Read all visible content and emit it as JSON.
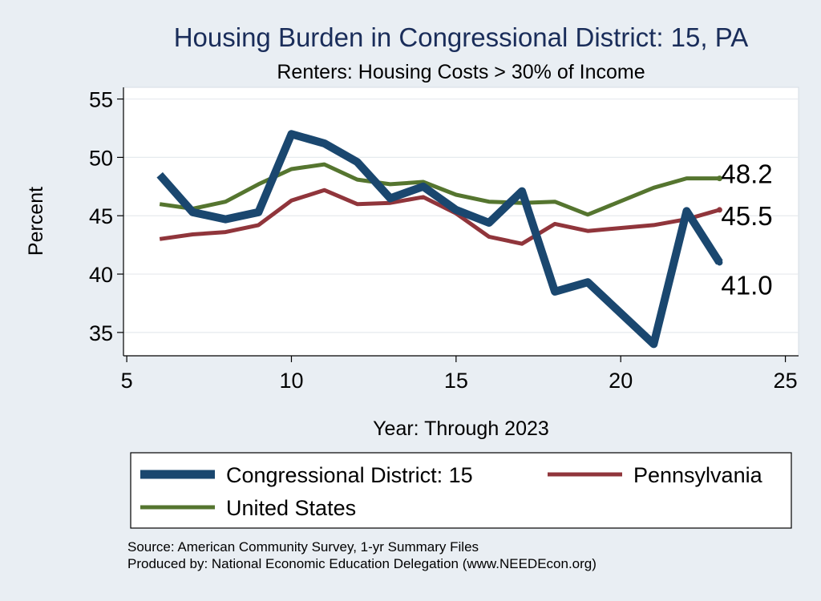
{
  "chart_data": {
    "type": "line",
    "title": "Housing Burden in Congressional District:  15, PA",
    "subtitle": "Renters: Housing Costs > 30% of Income",
    "xlabel": "Year: Through 2023",
    "ylabel": "Percent",
    "xlim": [
      4.9,
      25.4
    ],
    "ylim": [
      33,
      56
    ],
    "xticks": [
      5,
      10,
      15,
      20,
      25
    ],
    "yticks": [
      35,
      40,
      45,
      50,
      55
    ],
    "grid": true,
    "legend_position": "bottom",
    "series": [
      {
        "name": "Congressional District:  15",
        "color": "#1a476f",
        "x": [
          6,
          7,
          8,
          9,
          10,
          11,
          12,
          13,
          14,
          15,
          16,
          17,
          18,
          19,
          21,
          22,
          23
        ],
        "values": [
          48.5,
          45.3,
          44.7,
          45.3,
          52.0,
          51.2,
          49.6,
          46.5,
          47.5,
          45.5,
          44.4,
          47.1,
          38.5,
          39.3,
          34.0,
          45.4,
          41.0
        ],
        "end_label": "41.0"
      },
      {
        "name": "Pennsylvania",
        "color": "#90353b",
        "x": [
          6,
          7,
          8,
          9,
          10,
          11,
          12,
          13,
          14,
          15,
          16,
          17,
          18,
          19,
          21,
          22,
          23
        ],
        "values": [
          43.0,
          43.4,
          43.6,
          44.2,
          46.3,
          47.2,
          46.0,
          46.1,
          46.6,
          45.2,
          43.2,
          42.6,
          44.3,
          43.7,
          44.2,
          44.7,
          45.5
        ],
        "end_label": "45.5"
      },
      {
        "name": "United States",
        "color": "#55752f",
        "x": [
          6,
          7,
          8,
          9,
          10,
          11,
          12,
          13,
          14,
          15,
          16,
          17,
          18,
          19,
          21,
          22,
          23
        ],
        "values": [
          46.0,
          45.6,
          46.2,
          47.7,
          49.0,
          49.4,
          48.1,
          47.7,
          47.9,
          46.8,
          46.2,
          46.1,
          46.2,
          45.1,
          47.4,
          48.2,
          48.2
        ],
        "end_label": "48.2"
      }
    ],
    "source": "Source: American Community Survey, 1-yr Summary Files",
    "producer": "Produced by: National Economic Education Delegation (www.NEEDEcon.org)"
  }
}
